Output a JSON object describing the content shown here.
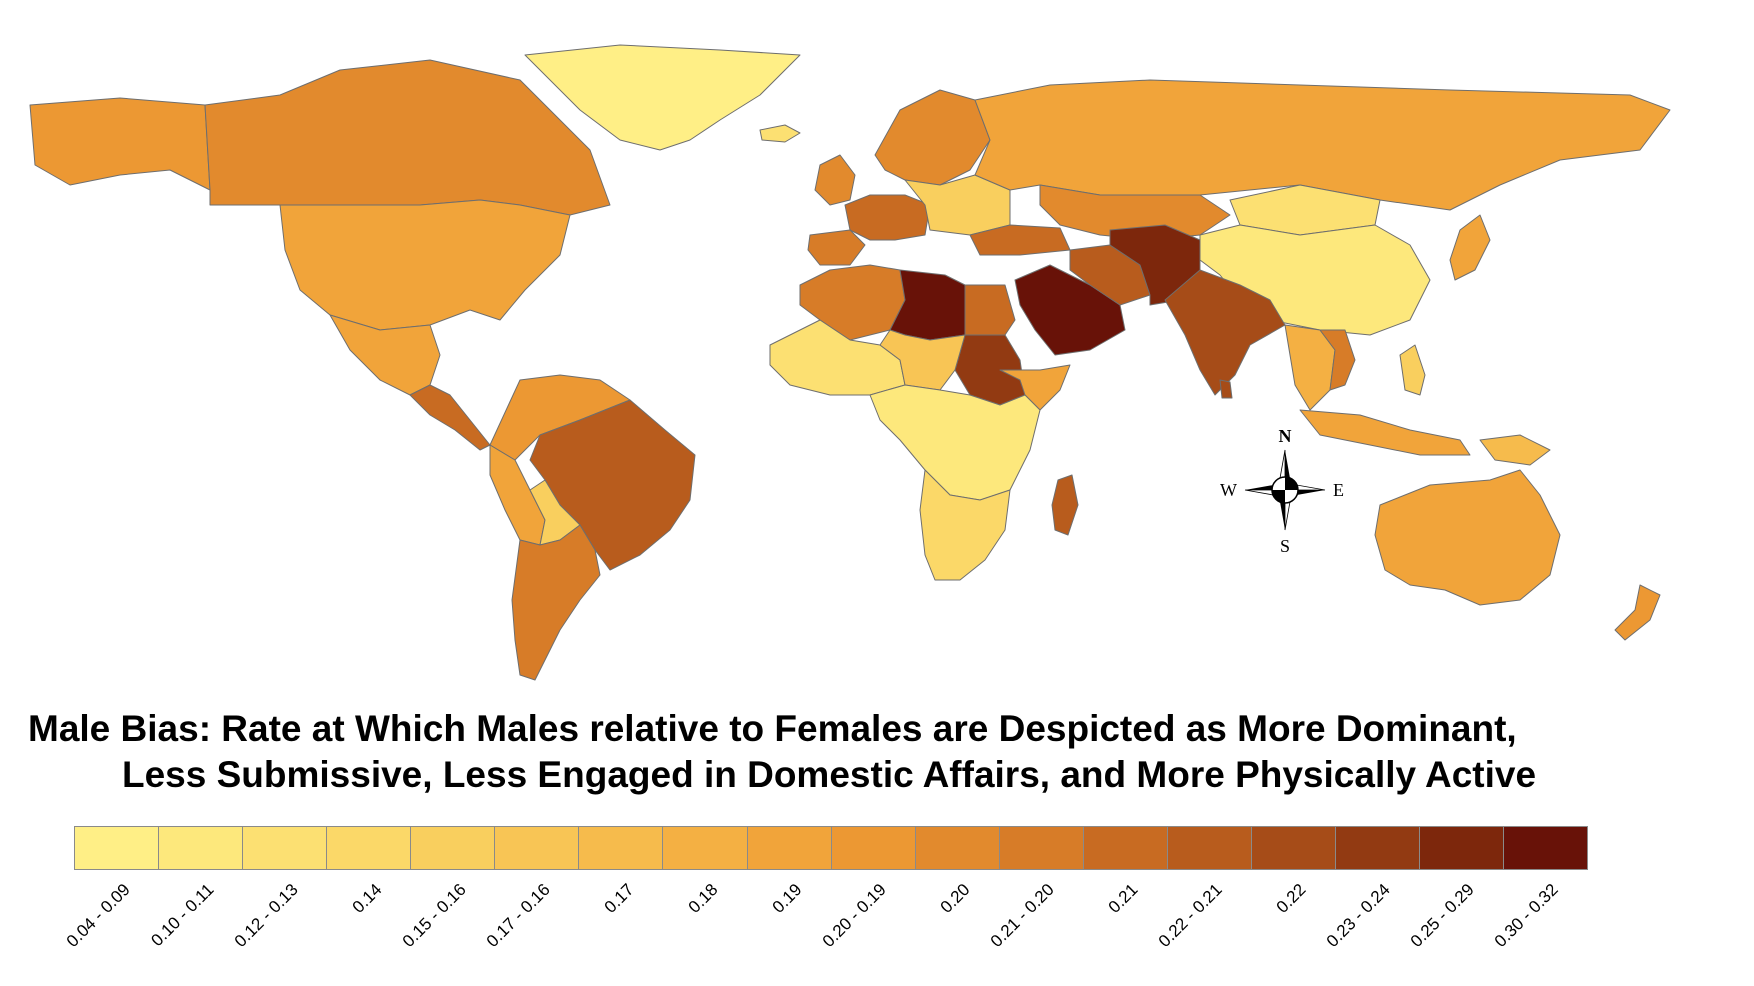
{
  "title": {
    "line1": "Male Bias: Rate at Which Males relative to Females are Despicted as More Dominant,",
    "line2": "Less Submissive, Less Engaged in Domestic Affairs, and More Physically Active"
  },
  "compass": {
    "north": "N",
    "south": "S",
    "east": "E",
    "west": "W"
  },
  "legend": {
    "classes": [
      {
        "label": "0.04 - 0.09",
        "color": "#ffef86"
      },
      {
        "label": "0.10 - 0.11",
        "color": "#fde87c"
      },
      {
        "label": "0.12 - 0.13",
        "color": "#fce072"
      },
      {
        "label": "0.14",
        "color": "#fbd868"
      },
      {
        "label": "0.15 - 0.16",
        "color": "#f9cf5e"
      },
      {
        "label": "0.17 - 0.16",
        "color": "#f8c555"
      },
      {
        "label": "0.17",
        "color": "#f6bb4c"
      },
      {
        "label": "0.18",
        "color": "#f4b043"
      },
      {
        "label": "0.19",
        "color": "#f1a43a"
      },
      {
        "label": "0.20 - 0.19",
        "color": "#ec9833"
      },
      {
        "label": "0.20",
        "color": "#e28a2d"
      },
      {
        "label": "0.21 - 0.20",
        "color": "#d77c28"
      },
      {
        "label": "0.21",
        "color": "#c86b22"
      },
      {
        "label": "0.22 - 0.21",
        "color": "#b85c1d"
      },
      {
        "label": "0.22",
        "color": "#a64c18"
      },
      {
        "label": "0.23 - 0.24",
        "color": "#923a12"
      },
      {
        "label": "0.25 - 0.29",
        "color": "#7d270c"
      },
      {
        "label": "0.30 - 0.32",
        "color": "#681208"
      }
    ]
  },
  "regions": [
    {
      "name": "alaska",
      "class": 9
    },
    {
      "name": "canada",
      "class": 10
    },
    {
      "name": "usa",
      "class": 8
    },
    {
      "name": "mexico",
      "class": 8
    },
    {
      "name": "central-america",
      "class": 12
    },
    {
      "name": "greenland",
      "class": 0
    },
    {
      "name": "colombia-venezuela",
      "class": 9
    },
    {
      "name": "peru",
      "class": 8
    },
    {
      "name": "brazil",
      "class": 13
    },
    {
      "name": "bolivia",
      "class": 4
    },
    {
      "name": "argentina-chile",
      "class": 11
    },
    {
      "name": "iceland",
      "class": 2
    },
    {
      "name": "scandinavia",
      "class": 10
    },
    {
      "name": "uk-ireland",
      "class": 10
    },
    {
      "name": "western-europe",
      "class": 12
    },
    {
      "name": "iberia",
      "class": 11
    },
    {
      "name": "eastern-europe",
      "class": 4
    },
    {
      "name": "russia",
      "class": 8
    },
    {
      "name": "kazakhstan-central-asia",
      "class": 10
    },
    {
      "name": "mongolia",
      "class": 2
    },
    {
      "name": "china",
      "class": 1
    },
    {
      "name": "japan",
      "class": 8
    },
    {
      "name": "turkey",
      "class": 12
    },
    {
      "name": "maghreb",
      "class": 11
    },
    {
      "name": "libya",
      "class": 17
    },
    {
      "name": "egypt",
      "class": 12
    },
    {
      "name": "sudan",
      "class": 15
    },
    {
      "name": "arabia",
      "class": 17
    },
    {
      "name": "iran",
      "class": 13
    },
    {
      "name": "afghanistan-pakistan",
      "class": 16
    },
    {
      "name": "india",
      "class": 14
    },
    {
      "name": "sri-lanka",
      "class": 14
    },
    {
      "name": "southeast-asia",
      "class": 7
    },
    {
      "name": "vietnam",
      "class": 11
    },
    {
      "name": "west-africa",
      "class": 2
    },
    {
      "name": "sahel",
      "class": 5
    },
    {
      "name": "horn-of-africa",
      "class": 8
    },
    {
      "name": "central-africa",
      "class": 1
    },
    {
      "name": "southern-africa",
      "class": 3
    },
    {
      "name": "madagascar",
      "class": 13
    },
    {
      "name": "indonesia",
      "class": 8
    },
    {
      "name": "philippines",
      "class": 4
    },
    {
      "name": "new-guinea",
      "class": 6
    },
    {
      "name": "australia",
      "class": 8
    },
    {
      "name": "new-zealand",
      "class": 9
    }
  ]
}
